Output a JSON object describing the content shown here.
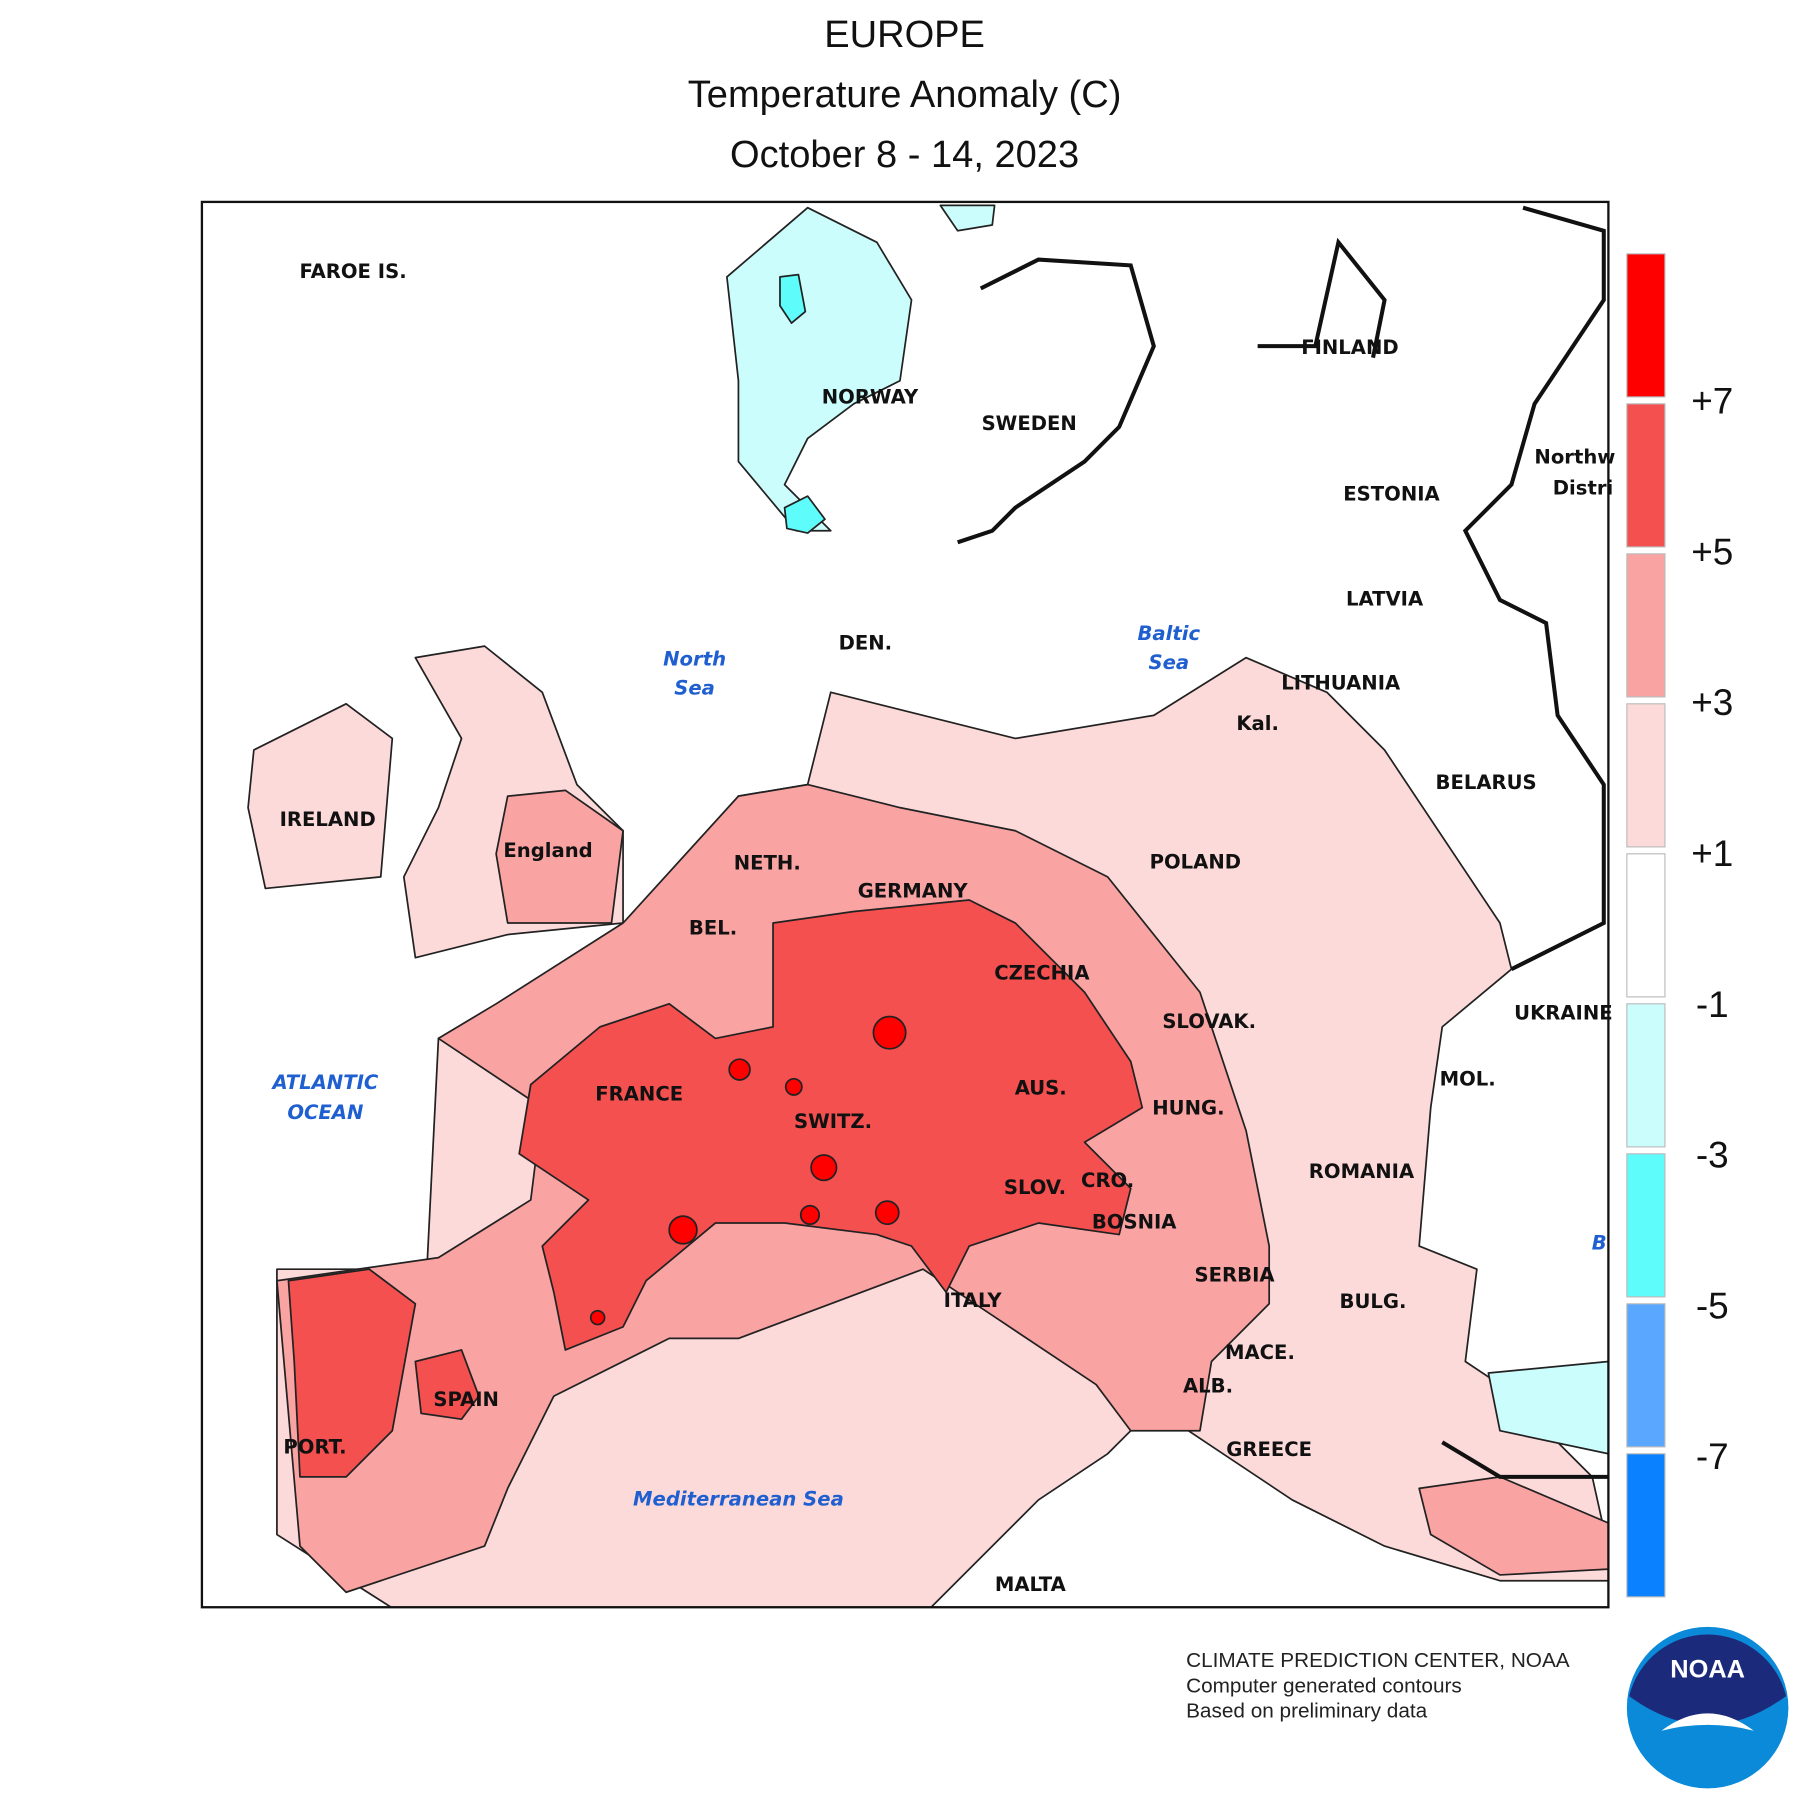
{
  "title": [
    "EUROPE",
    "Temperature Anomaly (C)",
    "October 8 - 14, 2023"
  ],
  "map_labels": [
    "FAROE IS.",
    "NORWAY",
    "SWEDEN",
    "FINLAND",
    "ESTONIA",
    "LATVIA",
    "LITHUANIA",
    "Kal.",
    "BELARUS",
    "POLAND",
    "IRELAND",
    "England",
    "NETH.",
    "GERMANY",
    "BEL.",
    "CZECHIA",
    "SLOVAK.",
    "UKRAINE",
    "MOL.",
    "FRANCE",
    "AUS.",
    "SWITZ.",
    "HUNG.",
    "ROMANIA",
    "SLOV.",
    "CRO.",
    "BOSNIA",
    "SERBIA",
    "BULG.",
    "ITALY",
    "MACE.",
    "ALB.",
    "SPAIN",
    "PORT.",
    "GREECE",
    "MALTA",
    "DEN.",
    "Northw",
    "Distri"
  ],
  "sea_labels": [
    "North",
    "Sea",
    "Baltic",
    "Sea",
    "ATLANTIC",
    "OCEAN",
    "Mediterranean Sea",
    "B"
  ],
  "legend": {
    "labels": [
      "+7",
      "+5",
      "+3",
      "+1",
      "-1",
      "-3",
      "-5",
      "-7"
    ],
    "colors": [
      "#ff0000",
      "#f55050",
      "#f9a3a3",
      "#fddada",
      "#ffffff",
      "#ccfdfd",
      "#5ffcfc",
      "#5aa7ff",
      "#0a82ff"
    ]
  },
  "credits": [
    "CLIMATE PREDICTION CENTER, NOAA",
    "Computer generated contours",
    "Based on preliminary data"
  ],
  "logo": "NOAA"
}
